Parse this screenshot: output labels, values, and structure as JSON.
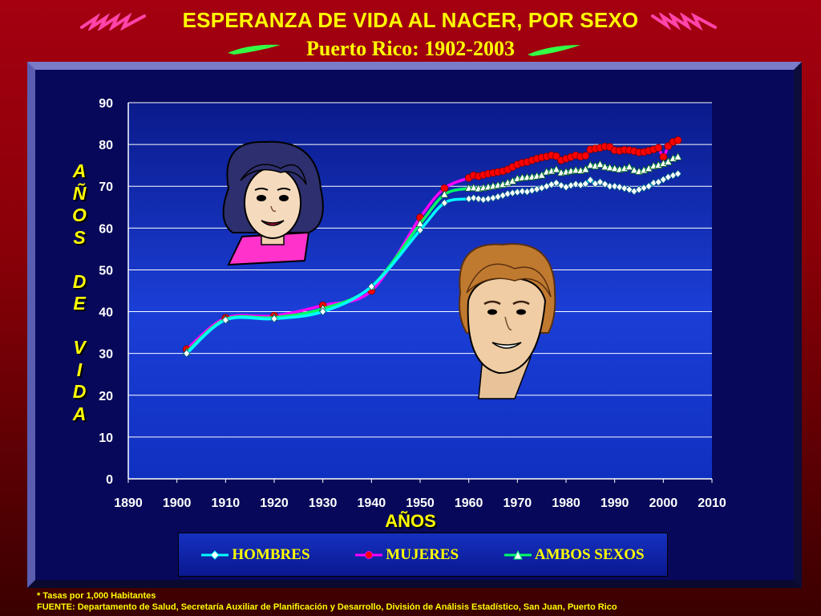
{
  "header": {
    "title": "ESPERANZA DE VIDA AL NACER, POR SEXO",
    "subtitle": "Puerto Rico: 1902-2003"
  },
  "footer": {
    "footnote": "* Tasas por 1,000 Habitantes",
    "source": "FUENTE:  Departamento de Salud, Secretaría Auxiliar de Planificación y Desarrollo, División de Análisis Estadístico, San Juan, Puerto Rico"
  },
  "colors": {
    "title": "#ffff00",
    "panel": "#07085a",
    "hombres": "#00ffff",
    "mujeres": "#ff00ff",
    "ambos": "#00ff66",
    "mujeres_marker": "#ff0000"
  },
  "illustrations": [
    "woman-face-icon",
    "man-face-icon"
  ],
  "chart_data": {
    "type": "line",
    "title": "ESPERANZA DE VIDA AL NACER, POR SEXO",
    "xlabel": "AÑOS",
    "ylabel": "AÑOS DE VIDA",
    "xlim": [
      1890,
      2010
    ],
    "ylim": [
      0,
      90
    ],
    "xticks": [
      1890,
      1900,
      1910,
      1920,
      1930,
      1940,
      1950,
      1960,
      1970,
      1980,
      1990,
      2000,
      2010
    ],
    "yticks": [
      0,
      10,
      20,
      30,
      40,
      50,
      60,
      70,
      80,
      90
    ],
    "grid": true,
    "legend_position": "bottom",
    "series": [
      {
        "name": "HOMBRES",
        "color": "#00ffff",
        "marker": "diamond",
        "x": [
          1902,
          1910,
          1920,
          1930,
          1940,
          1950,
          1955,
          1960,
          1961,
          1962,
          1963,
          1964,
          1965,
          1966,
          1967,
          1968,
          1969,
          1970,
          1971,
          1972,
          1973,
          1974,
          1975,
          1976,
          1977,
          1978,
          1979,
          1980,
          1981,
          1982,
          1983,
          1984,
          1985,
          1986,
          1987,
          1988,
          1989,
          1990,
          1991,
          1992,
          1993,
          1994,
          1995,
          1996,
          1997,
          1998,
          1999,
          2000,
          2001,
          2002,
          2003
        ],
        "y": [
          30.0,
          38.0,
          38.3,
          40.0,
          46.0,
          59.5,
          66.0,
          67.0,
          67.2,
          67.0,
          66.8,
          67.0,
          67.2,
          67.5,
          67.8,
          68.2,
          68.4,
          68.6,
          68.8,
          68.7,
          69.0,
          69.3,
          69.6,
          70.0,
          70.4,
          70.8,
          70.2,
          69.8,
          70.2,
          70.5,
          70.3,
          70.6,
          71.5,
          70.6,
          71.0,
          70.5,
          70.0,
          70.0,
          69.8,
          69.5,
          69.2,
          68.8,
          69.2,
          69.6,
          70.0,
          70.8,
          71.0,
          71.6,
          72.2,
          72.6,
          73.0
        ]
      },
      {
        "name": "MUJERES",
        "color": "#ff00ff",
        "marker": "circle",
        "x": [
          1902,
          1910,
          1920,
          1930,
          1940,
          1950,
          1955,
          1960,
          1961,
          1962,
          1963,
          1964,
          1965,
          1966,
          1967,
          1968,
          1969,
          1970,
          1971,
          1972,
          1973,
          1974,
          1975,
          1976,
          1977,
          1978,
          1979,
          1980,
          1981,
          1982,
          1983,
          1984,
          1985,
          1986,
          1987,
          1988,
          1989,
          1990,
          1991,
          1992,
          1993,
          1994,
          1995,
          1996,
          1997,
          1998,
          1999,
          2000,
          2001,
          2002,
          2003
        ],
        "y": [
          31.0,
          38.5,
          39.0,
          41.5,
          45.0,
          62.5,
          69.5,
          72.0,
          72.6,
          72.4,
          72.7,
          73.0,
          73.2,
          73.4,
          73.6,
          74.0,
          74.6,
          75.2,
          75.6,
          75.8,
          76.2,
          76.6,
          76.9,
          77.1,
          77.4,
          77.2,
          76.2,
          76.6,
          77.0,
          77.4,
          77.1,
          77.3,
          78.8,
          79.0,
          79.2,
          79.5,
          79.4,
          78.6,
          78.5,
          78.7,
          78.6,
          78.4,
          78.1,
          78.2,
          78.5,
          78.8,
          79.2,
          77.0,
          79.6,
          80.6,
          81.0
        ]
      },
      {
        "name": "AMBOS SEXOS",
        "color": "#00ff66",
        "marker": "triangle",
        "x": [
          1902,
          1910,
          1920,
          1930,
          1940,
          1950,
          1955,
          1960,
          1961,
          1962,
          1963,
          1964,
          1965,
          1966,
          1967,
          1968,
          1969,
          1970,
          1971,
          1972,
          1973,
          1974,
          1975,
          1976,
          1977,
          1978,
          1979,
          1980,
          1981,
          1982,
          1983,
          1984,
          1985,
          1986,
          1987,
          1988,
          1989,
          1990,
          1991,
          1992,
          1993,
          1994,
          1995,
          1996,
          1997,
          1998,
          1999,
          2000,
          2001,
          2002,
          2003
        ],
        "y": [
          30.3,
          38.2,
          38.6,
          40.7,
          46.0,
          61.0,
          68.0,
          69.5,
          69.6,
          69.4,
          69.6,
          69.8,
          70.0,
          70.2,
          70.4,
          70.8,
          71.2,
          71.8,
          72.0,
          72.1,
          72.2,
          72.4,
          72.6,
          73.4,
          73.6,
          74.0,
          73.2,
          73.4,
          73.6,
          73.8,
          73.7,
          74.0,
          75.0,
          74.8,
          75.2,
          74.6,
          74.4,
          74.2,
          74.0,
          74.2,
          74.6,
          73.8,
          73.5,
          73.8,
          74.2,
          74.8,
          75.0,
          75.4,
          75.8,
          76.6,
          77.0
        ]
      }
    ]
  }
}
